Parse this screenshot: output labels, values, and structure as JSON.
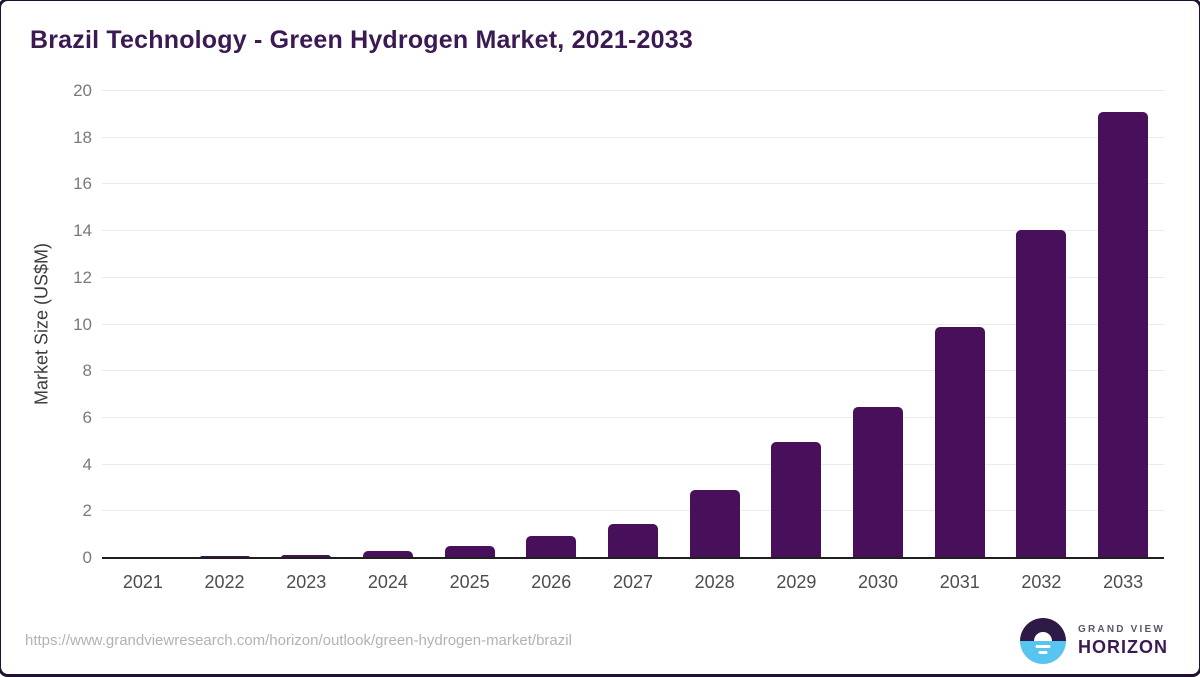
{
  "title": "Brazil Technology - Green Hydrogen Market, 2021-2033",
  "chart_data": {
    "type": "bar",
    "title": "Brazil Technology - Green Hydrogen Market, 2021-2033",
    "categories": [
      "2021",
      "2022",
      "2023",
      "2024",
      "2025",
      "2026",
      "2027",
      "2028",
      "2029",
      "2030",
      "2031",
      "2032",
      "2033"
    ],
    "values": [
      0.02,
      0.1,
      0.12,
      0.3,
      0.5,
      0.95,
      1.45,
      2.9,
      4.95,
      6.45,
      9.9,
      14.05,
      19.1
    ],
    "xlabel": "",
    "ylabel": "Market Size (US$M)",
    "ylim": [
      0,
      20
    ],
    "ytick_step": 2,
    "grid": true,
    "legend": "none",
    "bar_color": "#48105a"
  },
  "footer": {
    "source_url": "https://www.grandviewresearch.com/horizon/outlook/green-hydrogen-market/brazil",
    "logo": {
      "brand_top": "GRAND VIEW",
      "brand_bottom": "HORIZON"
    }
  },
  "colors": {
    "bar": "#48105a",
    "title_text": "#3b1a53",
    "axis_line": "#1f1f1f",
    "gridline": "#ebebeb",
    "y_tick_text": "#7a7a7a",
    "x_tick_text": "#4d4d4d",
    "url_text": "#b2b2b2",
    "logo_blue": "#58c5f1",
    "logo_dark": "#2e1a47"
  }
}
